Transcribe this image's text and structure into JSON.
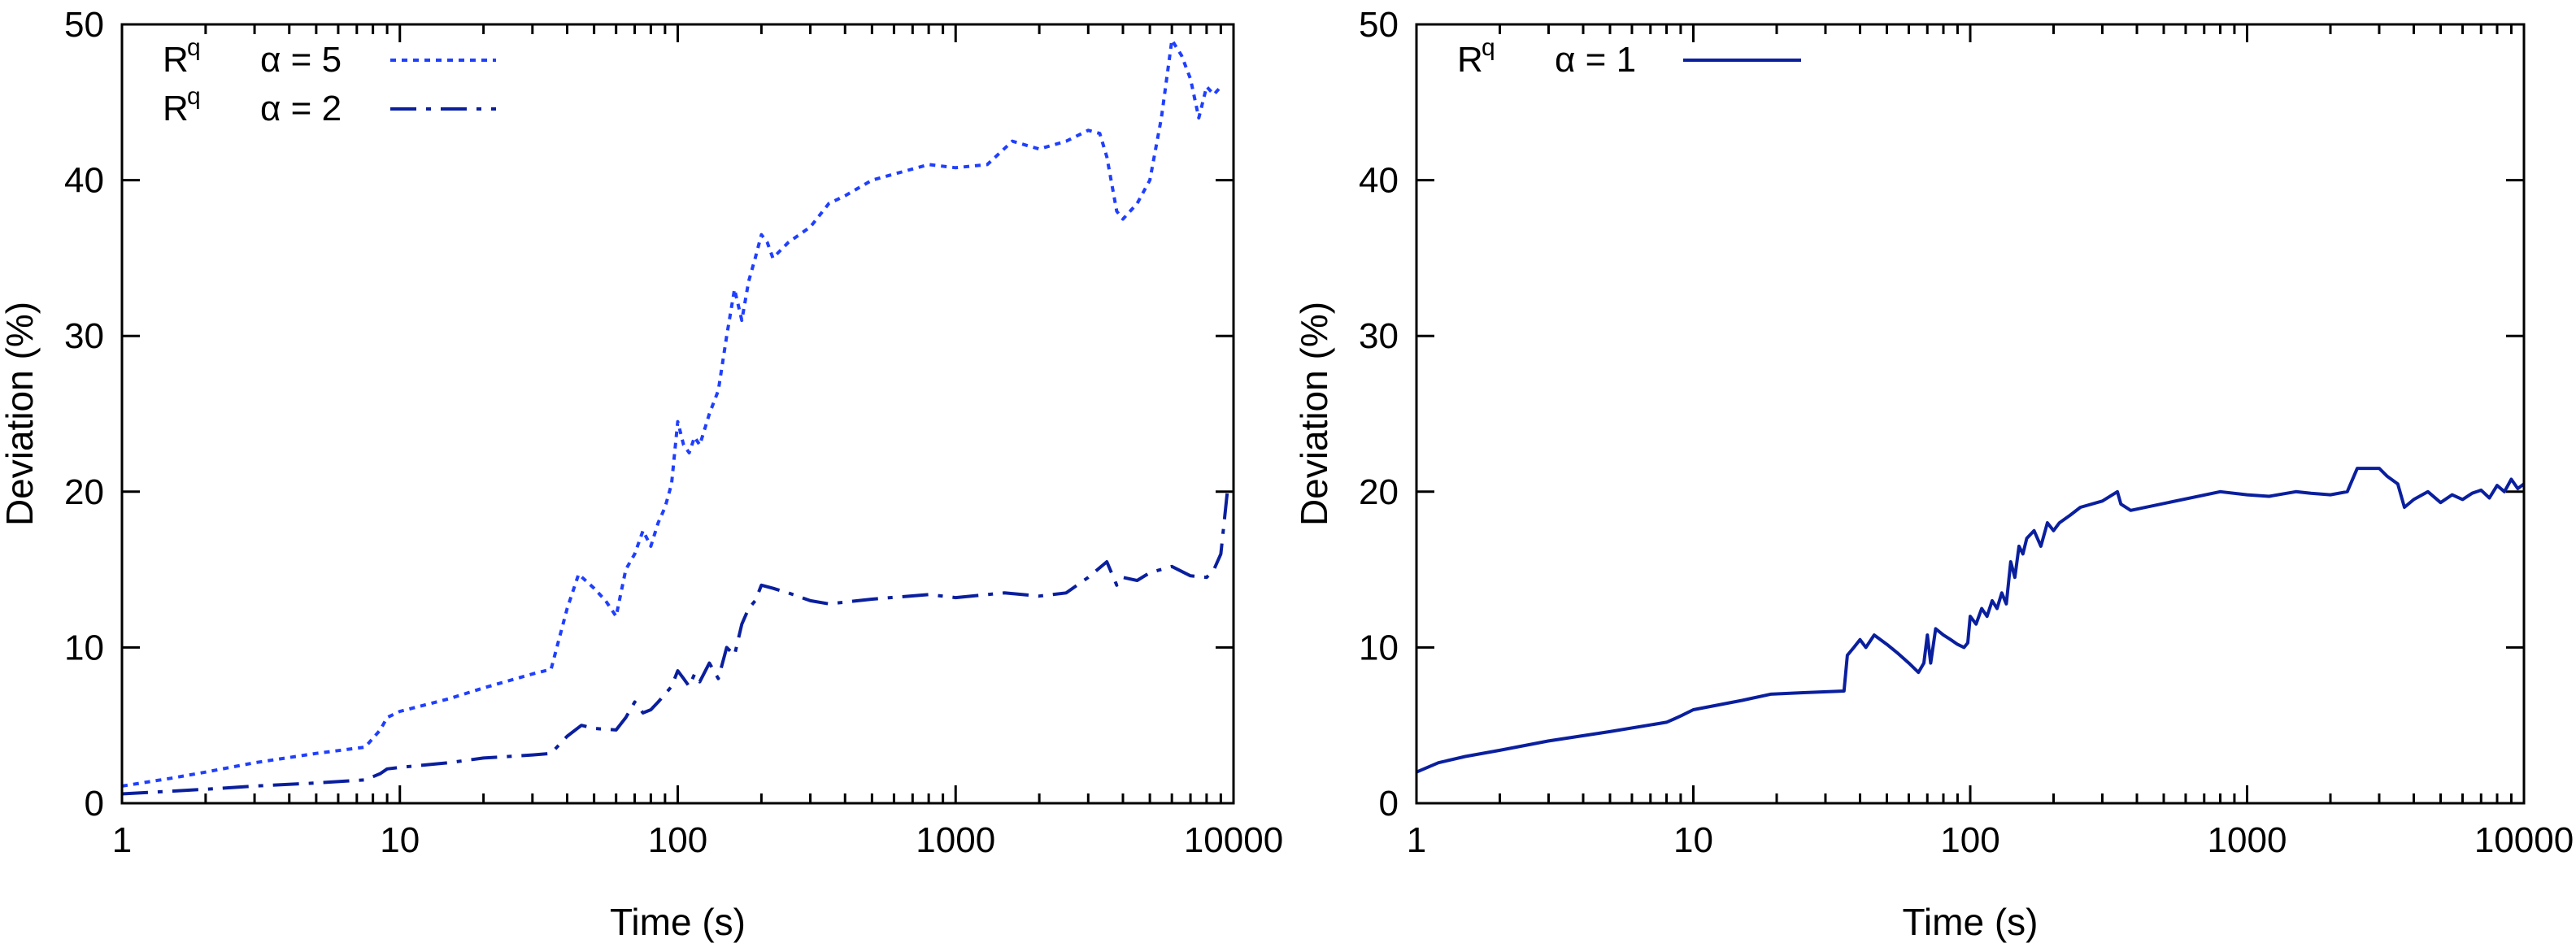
{
  "chart_data": [
    {
      "type": "line",
      "title": "",
      "xlabel": "Time (s)",
      "ylabel": "Deviation (%)",
      "xscale": "log",
      "xlim": [
        1,
        10000
      ],
      "ylim": [
        0,
        50
      ],
      "xticks": [
        1,
        10,
        100,
        1000,
        10000
      ],
      "xtick_labels": [
        "1",
        "10",
        "100",
        "1000",
        "10000"
      ],
      "yticks": [
        0,
        10,
        20,
        30,
        40,
        50
      ],
      "ytick_labels": [
        "0",
        "10",
        "20",
        "30",
        "40",
        "50"
      ],
      "legend_position": "top-left",
      "series": [
        {
          "name": "α = 5",
          "legend_symbol": "R",
          "legend_superscript": "q",
          "color": "#1f3fff",
          "style": "dotted",
          "x": [
            1,
            1.5,
            2,
            3,
            5,
            7.5,
            8.5,
            9,
            10,
            15,
            20,
            30,
            35,
            40,
            44,
            50,
            55,
            60,
            65,
            70,
            75,
            80,
            85,
            90,
            95,
            100,
            105,
            110,
            115,
            120,
            130,
            140,
            150,
            160,
            170,
            180,
            190,
            200,
            210,
            220,
            250,
            300,
            350,
            400,
            500,
            800,
            1000,
            1300,
            1600,
            2000,
            2500,
            3000,
            3300,
            3500,
            3800,
            4000,
            4500,
            5000,
            5500,
            6000,
            6500,
            7000,
            7500,
            8000,
            8500,
            9000
          ],
          "y": [
            1.1,
            1.6,
            2.0,
            2.6,
            3.2,
            3.6,
            4.7,
            5.5,
            5.9,
            6.7,
            7.4,
            8.3,
            8.6,
            12.5,
            14.7,
            13.8,
            13.0,
            12.0,
            15.0,
            16.0,
            17.5,
            16.5,
            18.0,
            19.0,
            20.5,
            24.5,
            23.0,
            22.5,
            23.5,
            23.0,
            25.0,
            26.5,
            30.0,
            33.0,
            31.0,
            33.5,
            35.0,
            36.5,
            36.0,
            35.0,
            36.0,
            37.0,
            38.5,
            39.0,
            40.0,
            41.0,
            40.8,
            41.0,
            42.5,
            42.0,
            42.5,
            43.2,
            43.0,
            41.5,
            38.0,
            37.5,
            38.5,
            40.0,
            44.0,
            49.0,
            48.0,
            46.5,
            44.0,
            46.0,
            45.5,
            46.0
          ]
        },
        {
          "name": "α = 2",
          "legend_symbol": "R",
          "legend_superscript": "q",
          "color": "#0a1f9e",
          "style": "dashdot",
          "x": [
            1,
            2,
            3,
            5,
            7.5,
            8.5,
            9,
            10,
            15,
            20,
            30,
            35,
            40,
            45,
            50,
            60,
            65,
            70,
            75,
            80,
            85,
            90,
            95,
            100,
            105,
            110,
            115,
            120,
            130,
            140,
            150,
            160,
            170,
            180,
            190,
            200,
            220,
            250,
            300,
            350,
            500,
            800,
            1000,
            1500,
            2000,
            2500,
            3000,
            3500,
            3800,
            4000,
            4500,
            5000,
            6000,
            7000,
            8000,
            8500,
            9000,
            9500
          ],
          "y": [
            0.6,
            0.9,
            1.1,
            1.3,
            1.5,
            1.9,
            2.2,
            2.3,
            2.6,
            2.9,
            3.1,
            3.2,
            4.3,
            5.0,
            4.8,
            4.7,
            5.5,
            6.5,
            5.8,
            6.0,
            6.5,
            7.0,
            7.5,
            8.5,
            8.0,
            7.5,
            8.3,
            7.8,
            9.0,
            8.0,
            10.0,
            9.5,
            11.5,
            12.5,
            13.0,
            14.0,
            13.8,
            13.5,
            13.0,
            12.8,
            13.1,
            13.4,
            13.2,
            13.5,
            13.3,
            13.5,
            14.5,
            15.5,
            14.0,
            14.5,
            14.3,
            14.8,
            15.2,
            14.6,
            14.5,
            15.0,
            16.0,
            20.0
          ]
        }
      ]
    },
    {
      "type": "line",
      "title": "",
      "xlabel": "Time (s)",
      "ylabel": "Deviation (%)",
      "xscale": "log",
      "xlim": [
        1,
        10000
      ],
      "ylim": [
        0,
        50
      ],
      "xticks": [
        1,
        10,
        100,
        1000,
        10000
      ],
      "xtick_labels": [
        "1",
        "10",
        "100",
        "1000",
        "10000"
      ],
      "yticks": [
        0,
        10,
        20,
        30,
        40,
        50
      ],
      "ytick_labels": [
        "0",
        "10",
        "20",
        "30",
        "40",
        "50"
      ],
      "legend_position": "top-left",
      "series": [
        {
          "name": "α = 1",
          "legend_symbol": "R",
          "legend_superscript": "q",
          "color": "#0a1f9e",
          "style": "solid",
          "x": [
            1,
            1.2,
            1.5,
            2,
            3,
            5,
            8,
            8.5,
            9,
            10,
            15,
            19,
            25,
            35,
            36,
            38,
            40,
            42,
            45,
            50,
            55,
            60,
            65,
            68,
            70,
            72,
            75,
            80,
            85,
            90,
            95,
            98,
            100,
            105,
            110,
            115,
            120,
            125,
            130,
            135,
            140,
            145,
            150,
            155,
            160,
            170,
            180,
            190,
            200,
            210,
            230,
            250,
            300,
            340,
            350,
            380,
            800,
            1000,
            1200,
            1500,
            1700,
            2000,
            2300,
            2500,
            3000,
            3200,
            3500,
            3700,
            4000,
            4500,
            5000,
            5500,
            6000,
            6500,
            7000,
            7500,
            8000,
            8500,
            9000,
            9500,
            10000
          ],
          "y": [
            2.0,
            2.6,
            3.0,
            3.4,
            4.0,
            4.6,
            5.2,
            5.4,
            5.6,
            6.0,
            6.6,
            7.0,
            7.1,
            7.2,
            9.5,
            10.0,
            10.5,
            10.0,
            10.8,
            10.2,
            9.6,
            9.0,
            8.4,
            9.0,
            10.8,
            9.0,
            11.2,
            10.8,
            10.5,
            10.2,
            10.0,
            10.3,
            12.0,
            11.5,
            12.5,
            12.0,
            13.0,
            12.5,
            13.5,
            12.8,
            15.5,
            14.5,
            16.5,
            16.0,
            17.0,
            17.5,
            16.5,
            18.0,
            17.5,
            18.0,
            18.5,
            19.0,
            19.4,
            20.0,
            19.2,
            18.8,
            20.0,
            19.8,
            19.7,
            20.0,
            19.9,
            19.8,
            20.0,
            21.5,
            21.5,
            21.0,
            20.5,
            19.0,
            19.5,
            20.0,
            19.3,
            19.8,
            19.5,
            19.9,
            20.1,
            19.6,
            20.4,
            20.0,
            20.8,
            20.2,
            20.5
          ]
        }
      ]
    }
  ]
}
